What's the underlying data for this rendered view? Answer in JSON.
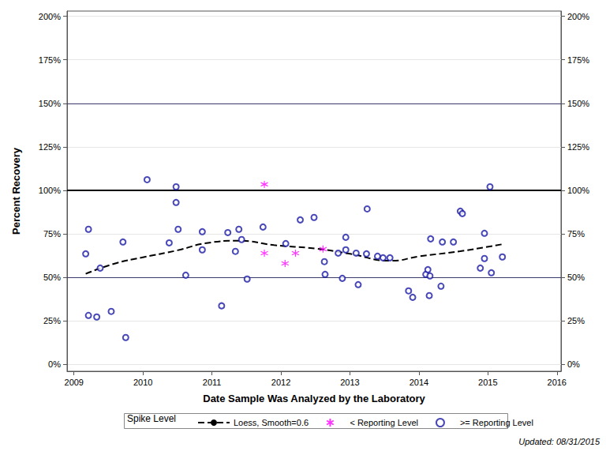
{
  "chart_data": {
    "type": "scatter",
    "x_label": "Date Sample Was Analyzed by the Laboratory",
    "y_label": "Percent Recovery",
    "legend_title": "Spike Level",
    "annotations": [
      "Updated: 08/31/2015"
    ],
    "xlim": [
      2008.9,
      2016.06
    ],
    "xticks": [
      2009,
      2010,
      2011,
      2012,
      2013,
      2014,
      2015,
      2016
    ],
    "ylim": [
      -4,
      203
    ],
    "yticks": [
      {
        "value": 0,
        "label": "0%"
      },
      {
        "value": 25,
        "label": "25%"
      },
      {
        "value": 50,
        "label": "50%"
      },
      {
        "value": 75,
        "label": "75%"
      },
      {
        "value": 100,
        "label": "100%"
      },
      {
        "value": 125,
        "label": "125%"
      },
      {
        "value": 150,
        "label": "150%"
      },
      {
        "value": 175,
        "label": "175%"
      },
      {
        "value": 200,
        "label": "200%"
      }
    ],
    "grid": true,
    "legend": "bottom",
    "reference_lines": [
      {
        "value": 50,
        "line_style": "thin"
      },
      {
        "value": 100,
        "line_style": "thick"
      },
      {
        "value": 150,
        "line_style": "thin"
      }
    ],
    "series": [
      {
        "name": "Loess, Smooth=0.6",
        "type": "line",
        "line_style": "dashed",
        "color": "#000000",
        "x": [
          2009.17,
          2009.6,
          2010,
          2010.5,
          2010.9,
          2011.4,
          2011.9,
          2012.5,
          2013,
          2013.6,
          2014,
          2014.6,
          2015.21
        ],
        "values": [
          52,
          58,
          61.5,
          65.5,
          69.5,
          71,
          68.5,
          66.5,
          63.5,
          59.5,
          62,
          65,
          69
        ]
      },
      {
        "name": "< Reporting Level",
        "type": "scatter",
        "marker": "asterisk",
        "color": "#ff00ff",
        "x": [
          2011.76,
          2011.76,
          2012.06,
          2012.21,
          2012.61
        ],
        "values": [
          103.4,
          63.9,
          58,
          63.9,
          66.2
        ]
      },
      {
        "name": ">= Reporting Level",
        "type": "scatter",
        "marker": "circle",
        "color": "#1a1aa6",
        "x": [
          2009.17,
          2009.21,
          2009.21,
          2009.33,
          2009.38,
          2009.54,
          2009.71,
          2009.75,
          2010.06,
          2010.38,
          2010.48,
          2010.48,
          2010.51,
          2010.62,
          2010.86,
          2010.86,
          2011.14,
          2011.23,
          2011.34,
          2011.39,
          2011.43,
          2011.51,
          2011.74,
          2012.07,
          2012.28,
          2012.48,
          2012.63,
          2012.64,
          2012.83,
          2012.89,
          2012.94,
          2012.94,
          2013.09,
          2013.12,
          2013.24,
          2013.25,
          2013.4,
          2013.48,
          2013.58,
          2013.85,
          2013.91,
          2014.1,
          2014.13,
          2014.15,
          2014.17,
          2014.16,
          2014.32,
          2014.34,
          2014.5,
          2014.6,
          2014.63,
          2014.89,
          2014.95,
          2014.95,
          2015.03,
          2015.05,
          2015.21
        ],
        "values": [
          63.5,
          77.6,
          28.1,
          27.2,
          55.3,
          30.4,
          70.3,
          15.4,
          106.1,
          69.8,
          102,
          93,
          77.6,
          51.2,
          76.2,
          65.8,
          33.6,
          75.7,
          64.9,
          77.6,
          71.7,
          49,
          78.9,
          69.4,
          83,
          84.4,
          59,
          51.7,
          63.9,
          49.4,
          65.8,
          73,
          63.9,
          45.8,
          63.5,
          89.3,
          62.1,
          61.2,
          61.2,
          42.2,
          38.5,
          51.7,
          54.4,
          39.5,
          72.1,
          50.8,
          44.9,
          70.3,
          70.3,
          88,
          86.6,
          55.3,
          75.3,
          60.8,
          102,
          52.6,
          61.7
        ]
      }
    ]
  }
}
